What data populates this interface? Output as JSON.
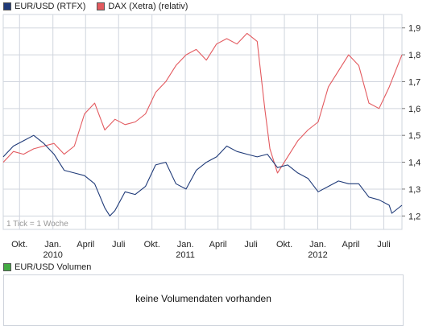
{
  "legend": {
    "eur_label": "EUR/USD (RTFX)",
    "dax_label": "DAX (Xetra) (relativ)"
  },
  "note": "1 Tick = 1 Woche",
  "volume": {
    "legend_label": "EUR/USD Volumen",
    "message": "keine Volumendaten vorhanden"
  },
  "colors": {
    "eur": "#1f3a78",
    "dax": "#e35a5f",
    "volume": "#44aa44",
    "grid": "#d0d5de"
  },
  "chart_data": {
    "type": "line",
    "ylim": [
      1.15,
      1.95
    ],
    "yticks": [
      "1,2",
      "1,3",
      "1,4",
      "1,5",
      "1,6",
      "1,7",
      "1,8",
      "1,9"
    ],
    "xticks": [
      {
        "label": "Okt.",
        "sub": ""
      },
      {
        "label": "Jan.",
        "sub": "2010"
      },
      {
        "label": "April",
        "sub": ""
      },
      {
        "label": "Juli",
        "sub": ""
      },
      {
        "label": "Okt.",
        "sub": ""
      },
      {
        "label": "Jan.",
        "sub": "2011"
      },
      {
        "label": "April",
        "sub": ""
      },
      {
        "label": "Juli",
        "sub": ""
      },
      {
        "label": "Okt.",
        "sub": ""
      },
      {
        "label": "Jan.",
        "sub": "2012"
      },
      {
        "label": "April",
        "sub": ""
      },
      {
        "label": "Juli",
        "sub": ""
      }
    ],
    "x_start": "2009-08-17",
    "x_end": "2012-08-20",
    "series": [
      {
        "name": "EUR/USD (RTFX)",
        "color": "#1f3a78",
        "x": [
          "2009-08-17",
          "2009-09-14",
          "2009-10-12",
          "2009-11-09",
          "2009-12-07",
          "2010-01-04",
          "2010-02-01",
          "2010-03-01",
          "2010-03-29",
          "2010-04-26",
          "2010-05-24",
          "2010-06-07",
          "2010-06-21",
          "2010-07-19",
          "2010-08-16",
          "2010-09-13",
          "2010-10-11",
          "2010-11-08",
          "2010-12-06",
          "2011-01-03",
          "2011-01-31",
          "2011-02-28",
          "2011-03-28",
          "2011-04-25",
          "2011-05-23",
          "2011-06-20",
          "2011-07-18",
          "2011-08-15",
          "2011-09-12",
          "2011-10-10",
          "2011-11-07",
          "2011-12-05",
          "2012-01-02",
          "2012-01-30",
          "2012-02-27",
          "2012-03-26",
          "2012-04-23",
          "2012-05-21",
          "2012-06-18",
          "2012-07-16",
          "2012-07-23",
          "2012-08-20"
        ],
        "values": [
          1.42,
          1.46,
          1.48,
          1.5,
          1.47,
          1.43,
          1.37,
          1.36,
          1.35,
          1.32,
          1.23,
          1.2,
          1.22,
          1.29,
          1.28,
          1.31,
          1.39,
          1.4,
          1.32,
          1.3,
          1.37,
          1.4,
          1.42,
          1.46,
          1.44,
          1.43,
          1.42,
          1.43,
          1.38,
          1.39,
          1.36,
          1.34,
          1.29,
          1.31,
          1.33,
          1.32,
          1.32,
          1.27,
          1.26,
          1.24,
          1.21,
          1.24
        ]
      },
      {
        "name": "DAX (Xetra) (relativ)",
        "color": "#e35a5f",
        "x": [
          "2009-08-17",
          "2009-09-14",
          "2009-10-12",
          "2009-11-09",
          "2009-12-07",
          "2010-01-04",
          "2010-02-01",
          "2010-03-01",
          "2010-03-29",
          "2010-04-26",
          "2010-05-24",
          "2010-06-21",
          "2010-07-19",
          "2010-08-16",
          "2010-09-13",
          "2010-10-11",
          "2010-11-08",
          "2010-12-06",
          "2011-01-03",
          "2011-01-31",
          "2011-02-28",
          "2011-03-28",
          "2011-04-25",
          "2011-05-23",
          "2011-06-20",
          "2011-07-18",
          "2011-08-08",
          "2011-08-22",
          "2011-09-12",
          "2011-10-10",
          "2011-11-07",
          "2011-12-05",
          "2012-01-02",
          "2012-01-30",
          "2012-02-27",
          "2012-03-26",
          "2012-04-23",
          "2012-05-21",
          "2012-06-18",
          "2012-07-16",
          "2012-08-20"
        ],
        "values": [
          1.4,
          1.44,
          1.43,
          1.45,
          1.46,
          1.47,
          1.43,
          1.46,
          1.58,
          1.62,
          1.52,
          1.56,
          1.54,
          1.55,
          1.58,
          1.66,
          1.7,
          1.76,
          1.8,
          1.82,
          1.78,
          1.84,
          1.86,
          1.84,
          1.88,
          1.85,
          1.6,
          1.45,
          1.36,
          1.42,
          1.48,
          1.52,
          1.55,
          1.68,
          1.74,
          1.8,
          1.76,
          1.62,
          1.6,
          1.68,
          1.8
        ]
      }
    ]
  }
}
